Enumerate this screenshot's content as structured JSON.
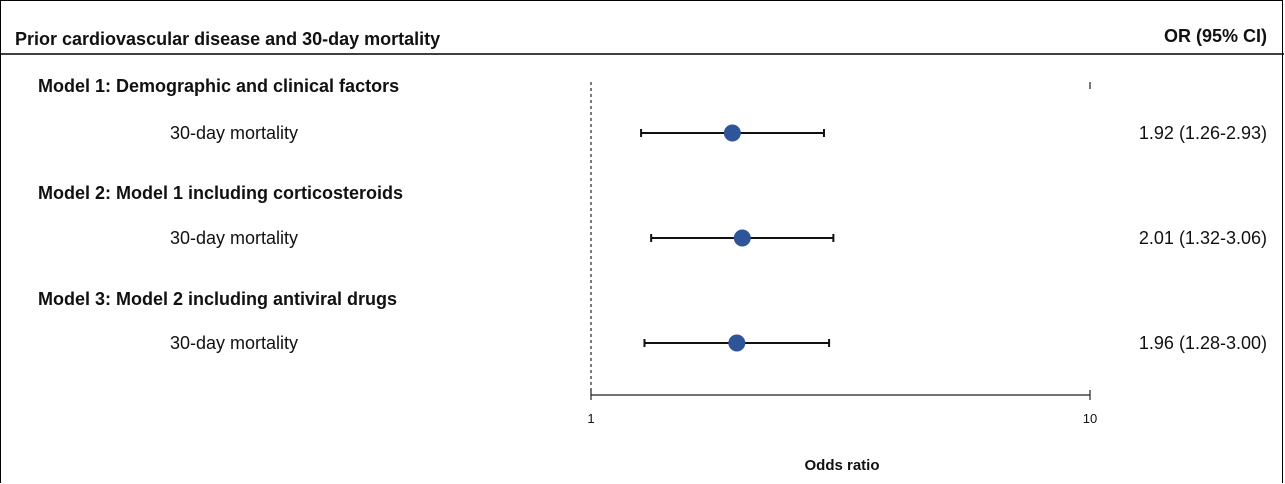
{
  "header": {
    "title": "Prior cardiovascular disease and 30-day mortality",
    "right_title": "OR (95% CI)"
  },
  "chart_data": {
    "type": "forest",
    "x_scale": "log",
    "xlim": [
      1,
      10
    ],
    "reference_line": 1,
    "xlabel": "Odds ratio",
    "x_ticks": [
      1,
      10
    ],
    "x_tick_labels": [
      "1",
      "10"
    ],
    "marker_color": "#2e5597",
    "groups": [
      {
        "label": "Model 1: Demographic and clinical factors",
        "rows": [
          {
            "label": "30-day mortality",
            "or": 1.92,
            "ci_low": 1.26,
            "ci_high": 2.93,
            "text": "1.92 (1.26-2.93)"
          }
        ]
      },
      {
        "label": "Model 2: Model 1 including corticosteroids",
        "rows": [
          {
            "label": "30-day mortality",
            "or": 2.01,
            "ci_low": 1.32,
            "ci_high": 3.06,
            "text": "2.01 (1.32-3.06)"
          }
        ]
      },
      {
        "label": "Model 3: Model 2 including antiviral drugs",
        "rows": [
          {
            "label": "30-day mortality",
            "or": 1.96,
            "ci_low": 1.28,
            "ci_high": 3.0,
            "text": "1.96 (1.28-3.00)"
          }
        ]
      }
    ]
  }
}
